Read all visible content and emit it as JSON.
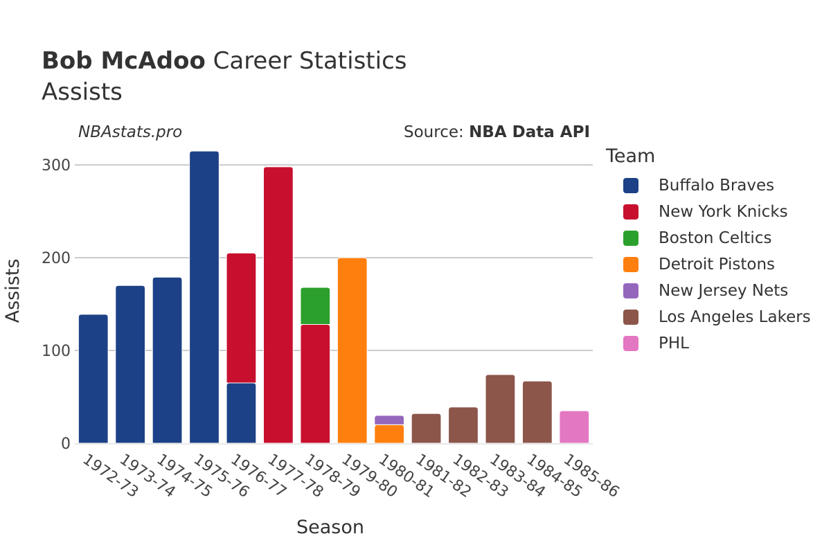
{
  "header": {
    "title_bold": "Bob McAdoo",
    "title_rest": "Career Statistics",
    "subtitle": "Assists",
    "watermark": "NBAstats.pro",
    "source_prefix": "Source: ",
    "source_bold": "NBA Data API"
  },
  "legend": {
    "title": "Team",
    "items": [
      {
        "label": "Buffalo Braves",
        "color": "#1c4186"
      },
      {
        "label": "New York Knicks",
        "color": "#c8102e"
      },
      {
        "label": "Boston Celtics",
        "color": "#2ca02c"
      },
      {
        "label": "Detroit Pistons",
        "color": "#ff7f0e"
      },
      {
        "label": "New Jersey Nets",
        "color": "#9467bd"
      },
      {
        "label": "Los Angeles Lakers",
        "color": "#8c564b"
      },
      {
        "label": "PHL",
        "color": "#e377c2"
      }
    ]
  },
  "chart_data": {
    "type": "bar",
    "stacked": true,
    "xlabel": "Season",
    "ylabel": "Assists",
    "ylim": [
      0,
      330
    ],
    "yticks": [
      0,
      100,
      200,
      300
    ],
    "categories": [
      "1972-73",
      "1973-74",
      "1974-75",
      "1975-76",
      "1976-77",
      "1977-78",
      "1978-79",
      "1979-80",
      "1980-81",
      "1981-82",
      "1982-83",
      "1983-84",
      "1984-85",
      "1985-86"
    ],
    "series": [
      {
        "name": "Buffalo Braves",
        "color": "#1c4186",
        "values": [
          139,
          170,
          179,
          315,
          65,
          0,
          0,
          0,
          0,
          0,
          0,
          0,
          0,
          0
        ]
      },
      {
        "name": "New York Knicks",
        "color": "#c8102e",
        "values": [
          0,
          0,
          0,
          0,
          140,
          298,
          128,
          0,
          0,
          0,
          0,
          0,
          0,
          0
        ]
      },
      {
        "name": "Boston Celtics",
        "color": "#2ca02c",
        "values": [
          0,
          0,
          0,
          0,
          0,
          0,
          40,
          0,
          0,
          0,
          0,
          0,
          0,
          0
        ]
      },
      {
        "name": "Detroit Pistons",
        "color": "#ff7f0e",
        "values": [
          0,
          0,
          0,
          0,
          0,
          0,
          0,
          200,
          20,
          0,
          0,
          0,
          0,
          0
        ]
      },
      {
        "name": "New Jersey Nets",
        "color": "#9467bd",
        "values": [
          0,
          0,
          0,
          0,
          0,
          0,
          0,
          0,
          10,
          0,
          0,
          0,
          0,
          0
        ]
      },
      {
        "name": "Los Angeles Lakers",
        "color": "#8c564b",
        "values": [
          0,
          0,
          0,
          0,
          0,
          0,
          0,
          0,
          0,
          32,
          39,
          74,
          67,
          0
        ]
      },
      {
        "name": "PHL",
        "color": "#e377c2",
        "values": [
          0,
          0,
          0,
          0,
          0,
          0,
          0,
          0,
          0,
          0,
          0,
          0,
          0,
          35
        ]
      }
    ],
    "grid": true,
    "legend_position": "right"
  }
}
